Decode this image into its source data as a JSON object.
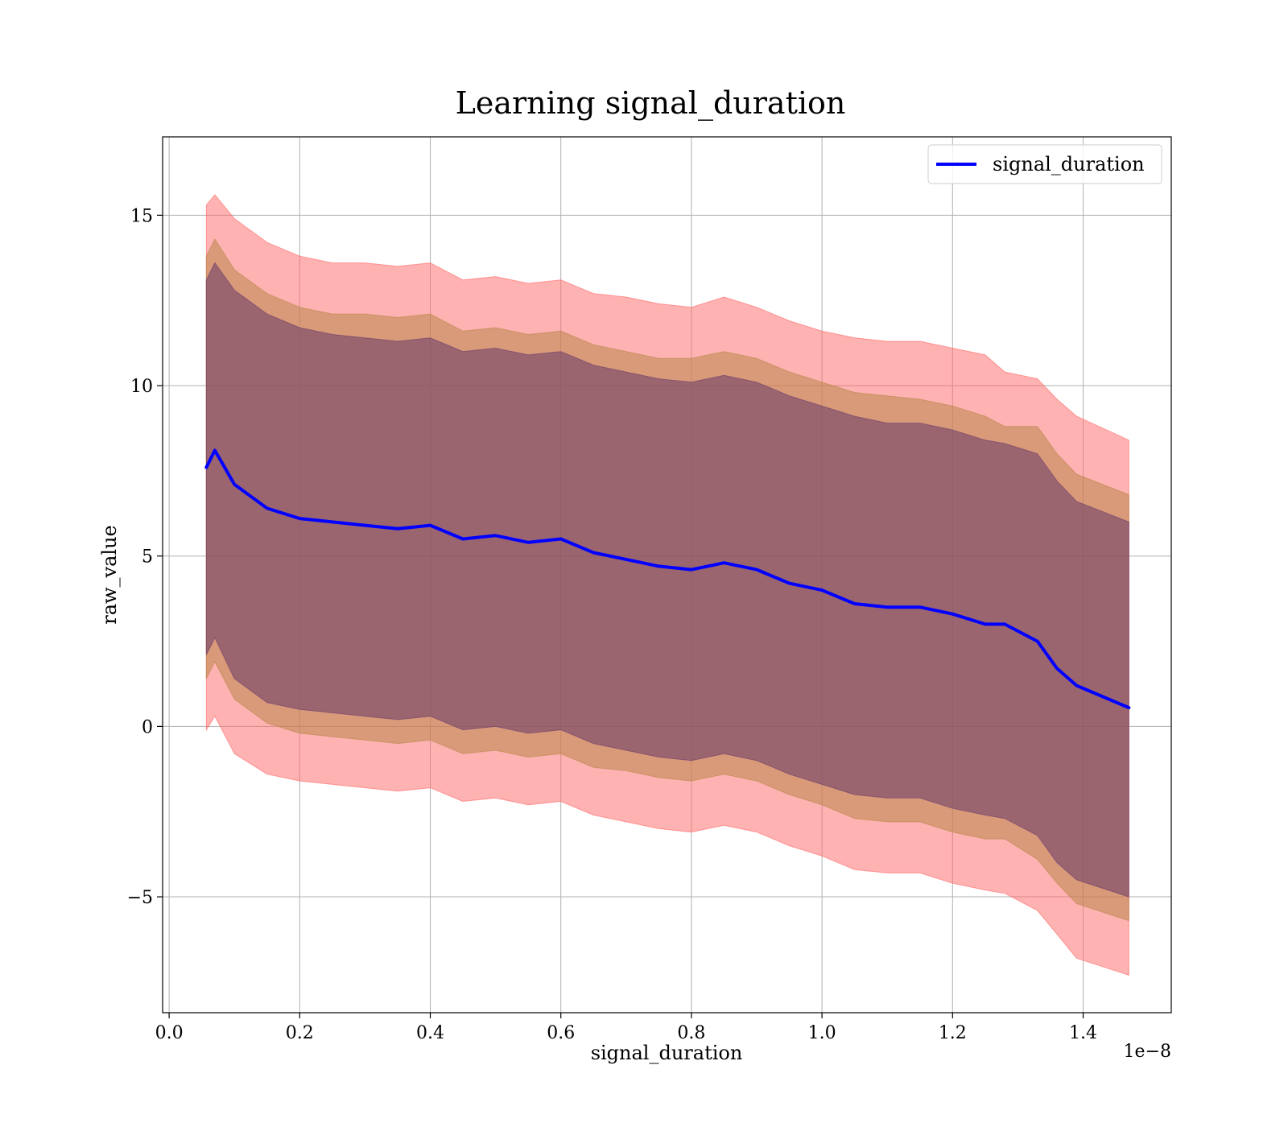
{
  "chart_data": {
    "type": "line",
    "title": "Learning signal_duration",
    "xlabel": "signal_duration",
    "ylabel": "raw_value",
    "x_offset_label": "1e−8",
    "xlim": [
      -0.01,
      1.535
    ],
    "ylim": [
      -8.4,
      17.3
    ],
    "x_ticks": [
      0.0,
      0.2,
      0.4,
      0.6,
      0.8,
      1.0,
      1.2,
      1.4
    ],
    "x_tick_labels": [
      "0.0",
      "0.2",
      "0.4",
      "0.6",
      "0.8",
      "1.0",
      "1.2",
      "1.4"
    ],
    "y_ticks": [
      -5,
      0,
      5,
      10,
      15
    ],
    "y_tick_labels": [
      "−5",
      "0",
      "5",
      "10",
      "15"
    ],
    "grid": true,
    "legend_position": "top-right",
    "x": [
      0.057,
      0.07,
      0.1,
      0.15,
      0.2,
      0.25,
      0.3,
      0.35,
      0.4,
      0.45,
      0.5,
      0.55,
      0.6,
      0.65,
      0.7,
      0.75,
      0.8,
      0.85,
      0.9,
      0.95,
      1.0,
      1.05,
      1.1,
      1.15,
      1.2,
      1.25,
      1.28,
      1.33,
      1.36,
      1.39,
      1.47
    ],
    "series": [
      {
        "name": "signal_duration",
        "color": "#0000ff",
        "values": [
          7.6,
          8.1,
          7.1,
          6.4,
          6.1,
          6.0,
          5.9,
          5.8,
          5.9,
          5.5,
          5.6,
          5.4,
          5.5,
          5.1,
          4.9,
          4.7,
          4.6,
          4.8,
          4.6,
          4.2,
          4.0,
          3.6,
          3.5,
          3.5,
          3.3,
          3.0,
          3.0,
          2.5,
          1.7,
          1.2,
          0.55
        ]
      }
    ],
    "bands": [
      {
        "color": "#ff6666",
        "upper": [
          15.3,
          15.6,
          14.9,
          14.2,
          13.8,
          13.6,
          13.6,
          13.5,
          13.6,
          13.1,
          13.2,
          13.0,
          13.1,
          12.7,
          12.6,
          12.4,
          12.3,
          12.6,
          12.3,
          11.9,
          11.6,
          11.4,
          11.3,
          11.3,
          11.1,
          10.9,
          10.4,
          10.2,
          9.6,
          9.1,
          8.4
        ],
        "lower": [
          -0.1,
          0.3,
          -0.8,
          -1.4,
          -1.6,
          -1.7,
          -1.8,
          -1.9,
          -1.8,
          -2.2,
          -2.1,
          -2.3,
          -2.2,
          -2.6,
          -2.8,
          -3.0,
          -3.1,
          -2.9,
          -3.1,
          -3.5,
          -3.8,
          -4.2,
          -4.3,
          -4.3,
          -4.6,
          -4.8,
          -4.9,
          -5.4,
          -6.1,
          -6.8,
          -7.3
        ]
      },
      {
        "color": "#b8874a",
        "upper": [
          13.8,
          14.3,
          13.4,
          12.7,
          12.3,
          12.1,
          12.1,
          12.0,
          12.1,
          11.6,
          11.7,
          11.5,
          11.6,
          11.2,
          11.0,
          10.8,
          10.8,
          11.0,
          10.8,
          10.4,
          10.1,
          9.8,
          9.7,
          9.6,
          9.4,
          9.1,
          8.8,
          8.8,
          8.0,
          7.4,
          6.8
        ],
        "lower": [
          1.4,
          1.9,
          0.8,
          0.1,
          -0.2,
          -0.3,
          -0.4,
          -0.5,
          -0.4,
          -0.8,
          -0.7,
          -0.9,
          -0.8,
          -1.2,
          -1.3,
          -1.5,
          -1.6,
          -1.4,
          -1.6,
          -2.0,
          -2.3,
          -2.7,
          -2.8,
          -2.8,
          -3.1,
          -3.3,
          -3.3,
          -3.9,
          -4.6,
          -5.2,
          -5.7
        ]
      },
      {
        "color": "#6a3b6a",
        "upper": [
          13.1,
          13.6,
          12.8,
          12.1,
          11.7,
          11.5,
          11.4,
          11.3,
          11.4,
          11.0,
          11.1,
          10.9,
          11.0,
          10.6,
          10.4,
          10.2,
          10.1,
          10.3,
          10.1,
          9.7,
          9.4,
          9.1,
          8.9,
          8.9,
          8.7,
          8.4,
          8.3,
          8.0,
          7.2,
          6.6,
          6.0
        ],
        "lower": [
          2.1,
          2.6,
          1.4,
          0.7,
          0.5,
          0.4,
          0.3,
          0.2,
          0.3,
          -0.1,
          0.0,
          -0.2,
          -0.1,
          -0.5,
          -0.7,
          -0.9,
          -1.0,
          -0.8,
          -1.0,
          -1.4,
          -1.7,
          -2.0,
          -2.1,
          -2.1,
          -2.4,
          -2.6,
          -2.7,
          -3.2,
          -4.0,
          -4.5,
          -5.0
        ]
      }
    ]
  }
}
